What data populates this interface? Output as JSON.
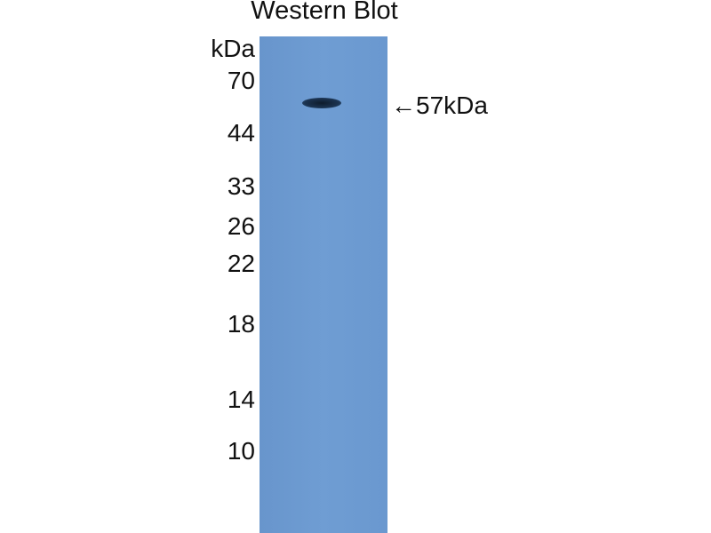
{
  "title": "Western Blot",
  "unit_label": "kDa",
  "markers": [
    "70",
    "44",
    "33",
    "26",
    "22",
    "18",
    "14",
    "10"
  ],
  "band_annotation": "←57kDa",
  "colors": {
    "membrane": "#6a99d0",
    "band": "#14263c"
  }
}
